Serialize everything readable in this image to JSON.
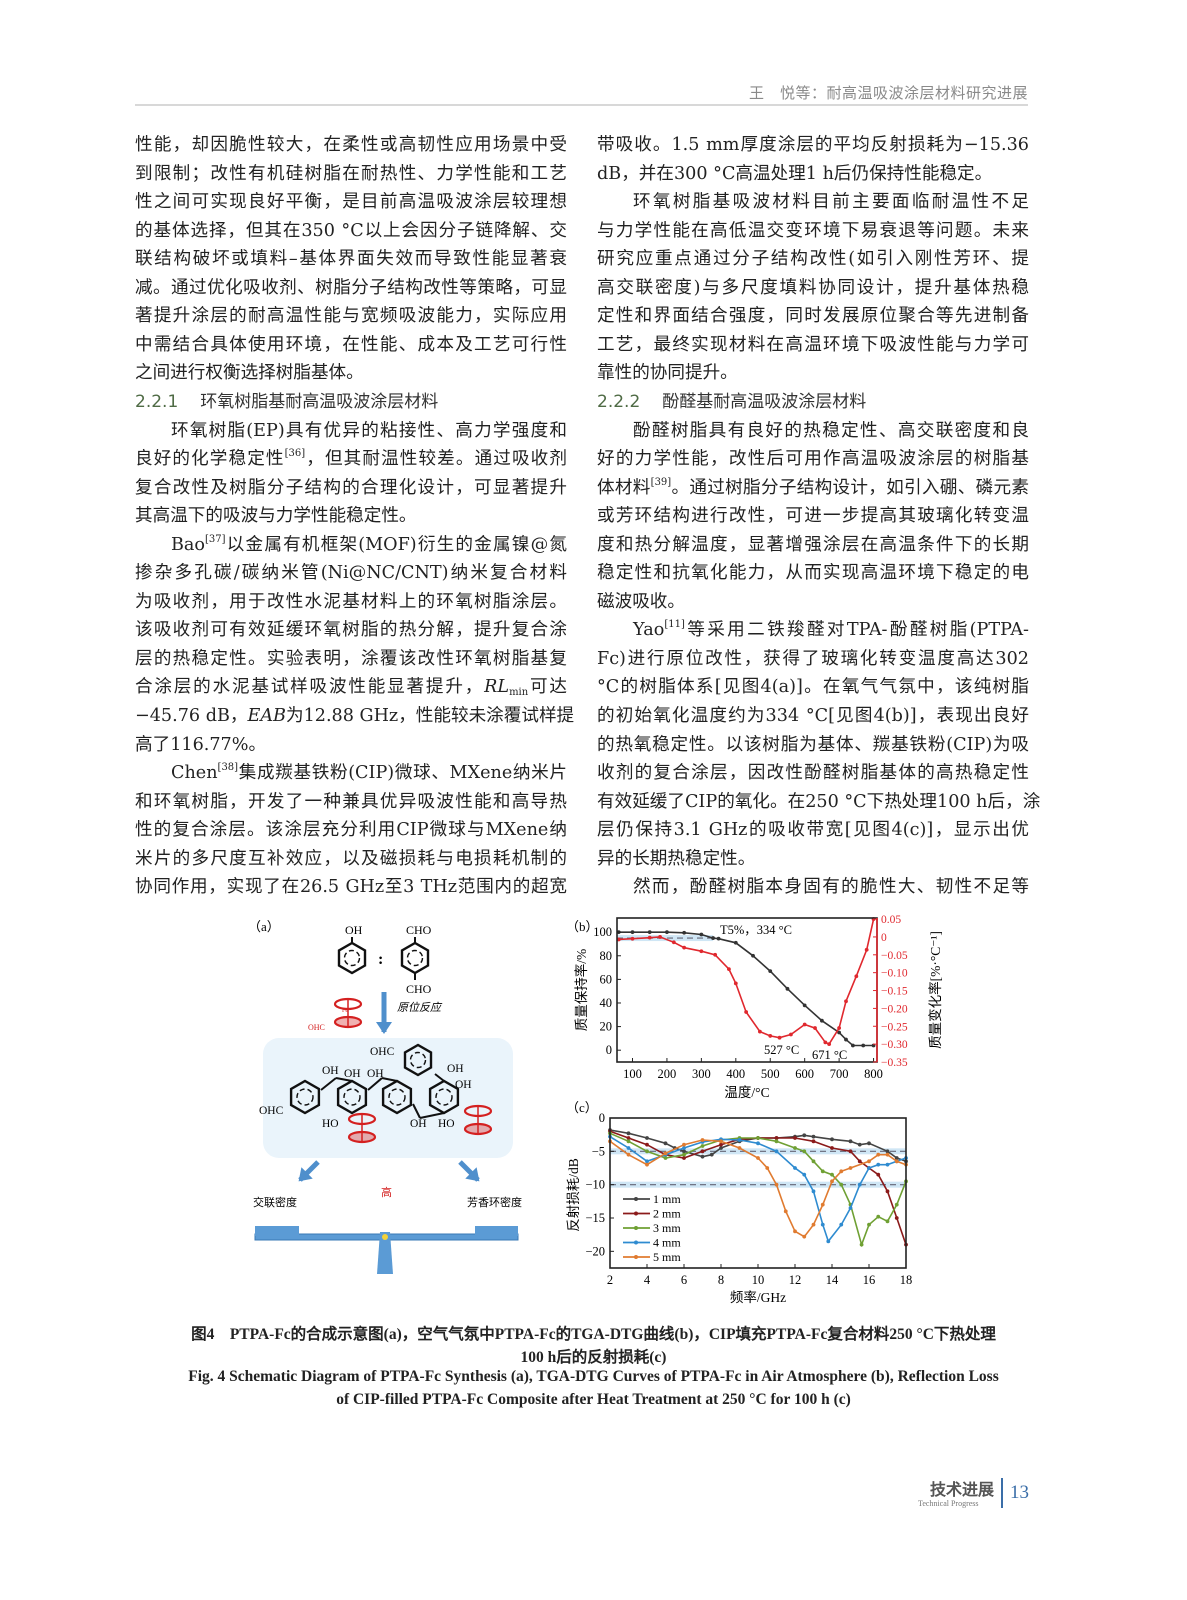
{
  "header": {
    "running_title": "王　悦等：耐高温吸波涂层材料研究进展"
  },
  "body": {
    "left": [
      {
        "segs": [
          {
            "t": "性能，却因脆性较大，在柔性或高韧性应用场景中受"
          }
        ]
      },
      {
        "segs": [
          {
            "t": "到限制；改性有机硅树脂在耐热性、力学性能和工艺"
          }
        ]
      },
      {
        "segs": [
          {
            "t": "性之间可实现良好平衡，是目前高温吸波涂层较理想"
          }
        ]
      },
      {
        "segs": [
          {
            "t": "的基体选择，但其在350 °C以上会因分子链降解、交"
          }
        ]
      },
      {
        "segs": [
          {
            "t": "联结构破坏或填料–基体界面失效而导致性能显著衰"
          }
        ]
      },
      {
        "segs": [
          {
            "t": "减。通过优化吸收剂、树脂分子结构改性等策略，可显"
          }
        ]
      },
      {
        "segs": [
          {
            "t": "著提升涂层的耐高温性能与宽频吸波能力，实际应用"
          }
        ]
      },
      {
        "segs": [
          {
            "t": "中需结合具体使用环境，在性能、成本及工艺可行性"
          }
        ]
      },
      {
        "end": true,
        "segs": [
          {
            "t": "之间进行权衡选择树脂基体。"
          }
        ]
      },
      {
        "heading": true,
        "num": "2.2.1",
        "title": "环氧树脂基耐高温吸波涂层材料"
      },
      {
        "indent": true,
        "segs": [
          {
            "t": "环氧树脂(EP)具有优异的粘接性、高力学强度和"
          }
        ]
      },
      {
        "segs": [
          {
            "t": "良好的化学稳定性"
          },
          {
            "t": "[36]",
            "f": "sup"
          },
          {
            "t": "，但其耐温性较差。通过吸收剂"
          }
        ]
      },
      {
        "segs": [
          {
            "t": "复合改性及树脂分子结构的合理化设计，可显著提升"
          }
        ]
      },
      {
        "end": true,
        "segs": [
          {
            "t": "其高温下的吸波与力学性能稳定性。"
          }
        ]
      },
      {
        "indent": true,
        "segs": [
          {
            "t": "Bao"
          },
          {
            "t": "[37]",
            "f": "sup"
          },
          {
            "t": "以金属有机框架(MOF)衍生的金属镍@氮"
          }
        ]
      },
      {
        "segs": [
          {
            "t": "掺杂多孔碳/碳纳米管(Ni@NC/CNT)纳米复合材料"
          }
        ]
      },
      {
        "segs": [
          {
            "t": "为吸收剂，用于改性水泥基材料上的环氧树脂涂层。"
          }
        ]
      },
      {
        "segs": [
          {
            "t": "该吸收剂可有效延缓环氧树脂的热分解，提升复合涂"
          }
        ]
      },
      {
        "segs": [
          {
            "t": "层的热稳定性。实验表明，涂覆该改性环氧树脂基复"
          }
        ]
      },
      {
        "segs": [
          {
            "t": "合涂层的水泥基试样吸波性能显著提升，"
          },
          {
            "t": "RL",
            "f": "i"
          },
          {
            "t": "min",
            "f": "sub"
          },
          {
            "t": "可达"
          }
        ]
      },
      {
        "segs": [
          {
            "t": "−45.76 dB，"
          },
          {
            "t": "EAB",
            "f": "i"
          },
          {
            "t": "为12.88 GHz，性能较未涂覆试样提"
          }
        ]
      },
      {
        "end": true,
        "segs": [
          {
            "t": "高了116.77%。"
          }
        ]
      },
      {
        "indent": true,
        "segs": [
          {
            "t": "Chen"
          },
          {
            "t": "[38]",
            "f": "sup"
          },
          {
            "t": "集成羰基铁粉(CIP)微球、MXene纳米片"
          }
        ]
      },
      {
        "segs": [
          {
            "t": "和环氧树脂，开发了一种兼具优异吸波性能和高导热"
          }
        ]
      },
      {
        "segs": [
          {
            "t": "性的复合涂层。该涂层充分利用CIP微球与MXene纳"
          }
        ]
      },
      {
        "segs": [
          {
            "t": "米片的多尺度互补效应，以及磁损耗与电损耗机制的"
          }
        ]
      },
      {
        "segs": [
          {
            "t": "协同作用，实现了在26.5 GHz至3 THz范围内的超宽"
          }
        ]
      }
    ],
    "right": [
      {
        "segs": [
          {
            "t": "带吸收。1.5 mm厚度涂层的平均反射损耗为−15.36"
          }
        ]
      },
      {
        "end": true,
        "segs": [
          {
            "t": "dB，并在300 °C高温处理1 h后仍保持性能稳定。"
          }
        ]
      },
      {
        "indent": true,
        "segs": [
          {
            "t": "环氧树脂基吸波材料目前主要面临耐温性不足"
          }
        ]
      },
      {
        "segs": [
          {
            "t": "与力学性能在高低温交变环境下易衰退等问题。未来"
          }
        ]
      },
      {
        "segs": [
          {
            "t": "研究应重点通过分子结构改性(如引入刚性芳环、提"
          }
        ]
      },
      {
        "segs": [
          {
            "t": "高交联密度)与多尺度填料协同设计，提升基体热稳"
          }
        ]
      },
      {
        "segs": [
          {
            "t": "定性和界面结合强度，同时发展原位聚合等先进制备"
          }
        ]
      },
      {
        "segs": [
          {
            "t": "工艺，最终实现材料在高温环境下吸波性能与力学可"
          }
        ]
      },
      {
        "end": true,
        "segs": [
          {
            "t": "靠性的协同提升。"
          }
        ]
      },
      {
        "heading": true,
        "num": "2.2.2",
        "title": "酚醛基耐高温吸波涂层材料"
      },
      {
        "indent": true,
        "segs": [
          {
            "t": "酚醛树脂具有良好的热稳定性、高交联密度和良"
          }
        ]
      },
      {
        "segs": [
          {
            "t": "好的力学性能，改性后可用作高温吸波涂层的树脂基"
          }
        ]
      },
      {
        "segs": [
          {
            "t": "体材料"
          },
          {
            "t": "[39]",
            "f": "sup"
          },
          {
            "t": "。通过树脂分子结构设计，如引入硼、磷元素"
          }
        ]
      },
      {
        "segs": [
          {
            "t": "或芳环结构进行改性，可进一步提高其玻璃化转变温"
          }
        ]
      },
      {
        "segs": [
          {
            "t": "度和热分解温度，显著增强涂层在高温条件下的长期"
          }
        ]
      },
      {
        "segs": [
          {
            "t": "稳定性和抗氧化能力，从而实现高温环境下稳定的电"
          }
        ]
      },
      {
        "end": true,
        "segs": [
          {
            "t": "磁波吸收。"
          }
        ]
      },
      {
        "indent": true,
        "segs": [
          {
            "t": "Yao"
          },
          {
            "t": "[11]",
            "f": "sup"
          },
          {
            "t": "等采用二铁羧醛对TPA-酚醛树脂(PTPA-"
          }
        ]
      },
      {
        "segs": [
          {
            "t": "Fc)进行原位改性，获得了玻璃化转变温度高达302"
          }
        ]
      },
      {
        "segs": [
          {
            "t": "°C的树脂体系[见图4(a)]。在氧气气氛中，该纯树脂"
          }
        ]
      },
      {
        "segs": [
          {
            "t": "的初始氧化温度约为334 °C[见图4(b)]，表现出良好"
          }
        ]
      },
      {
        "segs": [
          {
            "t": "的热氧稳定性。以该树脂为基体、羰基铁粉(CIP)为吸"
          }
        ]
      },
      {
        "segs": [
          {
            "t": "收剂的复合涂层，因改性酚醛树脂基体的高热稳定性"
          }
        ]
      },
      {
        "segs": [
          {
            "t": "有效延缓了CIP的氧化。在250 °C下热处理100 h后，涂"
          }
        ]
      },
      {
        "segs": [
          {
            "t": "层仍保持3.1 GHz的吸收带宽[见图4(c)]，显示出优"
          }
        ]
      },
      {
        "end": true,
        "segs": [
          {
            "t": "异的长期热稳定性。"
          }
        ]
      },
      {
        "indent": true,
        "segs": [
          {
            "t": "然而，酚醛树脂本身固有的脆性大、韧性不足等"
          }
        ]
      }
    ]
  },
  "figure": {
    "schematic": {
      "panel_label": "（a）",
      "reactant1_group": "OH",
      "reactant2_group_top": "CHO",
      "reactant2_group_bottom": "CHO",
      "ratio_sign": ":",
      "reaction_label": "原位反应",
      "ferrocene_group": "OHC",
      "fe": "Fe",
      "product_labels": [
        "OHC",
        "OH",
        "OH",
        "OH",
        "OHC",
        "OH",
        "OH",
        "HO",
        "OH",
        "HO",
        "OHC"
      ],
      "left_property": "交联密度",
      "center_property": "高",
      "right_property": "芳香环密度",
      "colors": {
        "arrow": "#4f8fcc",
        "ferrocene": "#d42020",
        "panel": "#eaf4fb"
      }
    },
    "caption": {
      "cn_line1": "图4　PTPA-Fc的合成示意图(a)，空气气氛中PTPA-Fc的TGA-DTG曲线(b)，CIP填充PTPA-Fc复合材料250 °C下热处理",
      "cn_line2": "100 h后的反射损耗(c)",
      "en_line1": "Fig. 4  Schematic Diagram of PTPA-Fc Synthesis (a), TGA-DTG Curves of PTPA-Fc in Air Atmosphere (b), Reflection Loss",
      "en_line2": "of CIP-filled PTPA-Fc Composite after Heat Treatment at 250 °C for 100 h (c)"
    }
  },
  "chart_data": [
    {
      "type": "line",
      "panel_label": "（b）",
      "xlabel": "温度/°C",
      "ylabel": "质量保持率/%",
      "y2label": "质量变化率[%·°C⁻¹]",
      "xlim": [
        55,
        810
      ],
      "ylim": [
        -10,
        112
      ],
      "y2lim": [
        -0.35,
        0.053
      ],
      "xticks": [
        100,
        200,
        300,
        400,
        500,
        600,
        700,
        800
      ],
      "yticks": [
        0,
        20,
        40,
        60,
        80,
        100
      ],
      "y2ticks": [
        "0.05",
        "0",
        "−0.05",
        "−0.10",
        "−0.15",
        "−0.20",
        "−0.25",
        "−0.30",
        "−0.35"
      ],
      "y2tick_values": [
        0.05,
        0,
        -0.05,
        -0.1,
        -0.15,
        -0.2,
        -0.25,
        -0.3,
        -0.35
      ],
      "grid": false,
      "series": [
        {
          "axis": "left",
          "color": "#333333",
          "x": [
            60,
            100,
            150,
            200,
            250,
            300,
            334,
            350,
            400,
            450,
            500,
            550,
            600,
            650,
            700,
            720,
            740,
            770,
            800
          ],
          "y": [
            100,
            100,
            100,
            100,
            99.5,
            98,
            95,
            94.5,
            91,
            80,
            67,
            52,
            38,
            25,
            15,
            9,
            4,
            4,
            4
          ]
        },
        {
          "axis": "right",
          "color": "#e0282e",
          "x": [
            60,
            100,
            150,
            180,
            220,
            250,
            300,
            340,
            380,
            400,
            430,
            470,
            500,
            527,
            560,
            600,
            630,
            660,
            671,
            700,
            720,
            750,
            780,
            800
          ],
          "y": [
            -0.007,
            -0.005,
            -0.002,
            0,
            -0.015,
            -0.03,
            -0.04,
            -0.05,
            -0.09,
            -0.13,
            -0.21,
            -0.265,
            -0.277,
            -0.282,
            -0.273,
            -0.245,
            -0.255,
            -0.295,
            -0.3,
            -0.255,
            -0.18,
            -0.11,
            -0.036,
            0.05
          ]
        }
      ],
      "reference_line": {
        "y": 95,
        "x_range": [
          55,
          334
        ],
        "style": "dashed",
        "band_color": "#cfe6f5"
      },
      "annotations": [
        "T5%，334 °C",
        "527 °C",
        "671 °C"
      ]
    },
    {
      "type": "line",
      "panel_label": "（c）",
      "xlabel": "频率/GHz",
      "ylabel": "反射损耗/dB",
      "xlim": [
        2,
        18
      ],
      "ylim": [
        -22.5,
        0
      ],
      "xticks": [
        2,
        4,
        6,
        8,
        10,
        12,
        14,
        16,
        18
      ],
      "yticks": [
        0,
        -5,
        -10,
        -15,
        -20
      ],
      "ytick_labels": [
        "0",
        "−5",
        "−10",
        "−15",
        "−20"
      ],
      "grid": false,
      "legend": "bottom-left",
      "reference_lines": [
        -5,
        -10
      ],
      "band_color": "#cfe6f5",
      "series": [
        {
          "name": "1 mm",
          "color": "#444444",
          "x": [
            2,
            3,
            4,
            5,
            5.5,
            6,
            7,
            7.5,
            8,
            9,
            10,
            11,
            12,
            12.5,
            13,
            14,
            15,
            15.5,
            16,
            17,
            17.5,
            18
          ],
          "y": [
            -1.8,
            -2.3,
            -3,
            -3.8,
            -4.5,
            -5,
            -5.8,
            -5.5,
            -4.5,
            -3.5,
            -3,
            -3,
            -2.8,
            -2.6,
            -2.8,
            -3.2,
            -3.5,
            -4,
            -3.8,
            -5,
            -6,
            -6.5
          ]
        },
        {
          "name": "2 mm",
          "color": "#8b1a1a",
          "x": [
            2,
            3,
            4,
            5,
            6,
            7,
            8,
            9,
            10,
            11,
            12,
            13,
            14,
            15,
            15.5,
            16,
            16.5,
            17,
            17.5,
            18
          ],
          "y": [
            -2,
            -3,
            -4,
            -5.5,
            -6,
            -5,
            -4,
            -3.2,
            -3,
            -3,
            -3,
            -3.5,
            -4.5,
            -5,
            -6.5,
            -7.5,
            -8.5,
            -11,
            -15,
            -19
          ]
        },
        {
          "name": "3 mm",
          "color": "#6fa033",
          "x": [
            2,
            3,
            4,
            5,
            6,
            7,
            8,
            9,
            10,
            11,
            12,
            12.5,
            13,
            13.5,
            14,
            14.5,
            15,
            15.6,
            16,
            16.5,
            17,
            17.5,
            18
          ],
          "y": [
            -2.3,
            -3.5,
            -5,
            -6,
            -5.5,
            -4.2,
            -3.3,
            -3,
            -3,
            -3.5,
            -4.5,
            -5,
            -6.5,
            -8,
            -8.5,
            -10,
            -13,
            -19,
            -16,
            -14.8,
            -15.5,
            -13,
            -9.5
          ]
        },
        {
          "name": "4 mm",
          "color": "#2e8bd0",
          "x": [
            2,
            3,
            4,
            5,
            6,
            7,
            8,
            9,
            10,
            11,
            12,
            12.5,
            13,
            13.5,
            13.8,
            14.5,
            15,
            15.5,
            16,
            16.5,
            17,
            17.5,
            18
          ],
          "y": [
            -2.8,
            -4.5,
            -6.5,
            -5.5,
            -4.5,
            -3.6,
            -3.2,
            -3.3,
            -3.8,
            -5,
            -7.5,
            -8.5,
            -11,
            -16,
            -18.5,
            -16,
            -13.5,
            -10,
            -7.5,
            -7,
            -7,
            -6.5,
            -6
          ]
        },
        {
          "name": "5 mm",
          "color": "#e07b30",
          "x": [
            2,
            3,
            4,
            5,
            6,
            7,
            8,
            9,
            10,
            10.5,
            11,
            11.5,
            12,
            12.5,
            13,
            13.5,
            14,
            14.5,
            15,
            16,
            16.5,
            17,
            17.5,
            18
          ],
          "y": [
            -3.5,
            -5.5,
            -7,
            -5.3,
            -4,
            -3.3,
            -3.5,
            -4.5,
            -6,
            -7.5,
            -10,
            -14,
            -17,
            -17.8,
            -16,
            -13,
            -9.5,
            -8,
            -7.5,
            -6.5,
            -5.5,
            -5.5,
            -6.5,
            -7
          ]
        }
      ]
    }
  ],
  "footer": {
    "section_cn": "技术进展",
    "section_en": "Technical Progress",
    "page_number": "13"
  }
}
